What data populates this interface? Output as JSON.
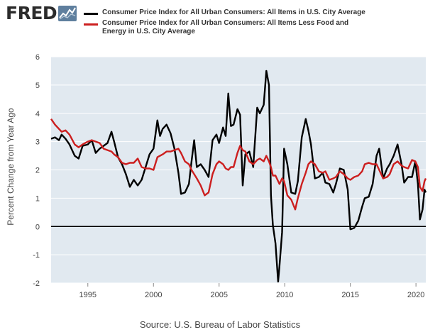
{
  "header": {
    "logo_text": "FRED",
    "logo_icon": "line-chart-icon"
  },
  "legend": [
    {
      "label": "Consumer Price Index for All Urban Consumers: All Items in U.S. City Average",
      "color": "#000000"
    },
    {
      "label": "Consumer Price Index for All Urban Consumers: All Items Less Food and Energy in U.S. City Average",
      "color": "#cc1f1f"
    }
  ],
  "source": "Source: U.S. Bureau of Labor Statistics",
  "chart_data": {
    "type": "line",
    "ylabel": "Percent Change from Year Ago",
    "xlabel": "",
    "xlim": [
      1992.2,
      2020.75
    ],
    "ylim": [
      -2,
      6
    ],
    "yticks": [
      -2,
      -1,
      0,
      1,
      2,
      3,
      4,
      5,
      6
    ],
    "xticks": [
      1995,
      2000,
      2005,
      2010,
      2015,
      2020
    ],
    "grid": "horizontal",
    "zero_line": true,
    "background": "#e1e9f0",
    "series": [
      {
        "name": "Consumer Price Index for All Urban Consumers: All Items in U.S. City Average",
        "color": "#000000",
        "points": [
          [
            1992.2,
            3.1
          ],
          [
            1992.5,
            3.15
          ],
          [
            1992.8,
            3.05
          ],
          [
            1993.0,
            3.25
          ],
          [
            1993.3,
            3.1
          ],
          [
            1993.6,
            2.9
          ],
          [
            1994.0,
            2.5
          ],
          [
            1994.3,
            2.4
          ],
          [
            1994.6,
            2.85
          ],
          [
            1995.0,
            2.9
          ],
          [
            1995.3,
            3.05
          ],
          [
            1995.6,
            2.6
          ],
          [
            1995.9,
            2.75
          ],
          [
            1996.2,
            2.85
          ],
          [
            1996.5,
            2.95
          ],
          [
            1996.8,
            3.35
          ],
          [
            1997.0,
            3.0
          ],
          [
            1997.3,
            2.45
          ],
          [
            1997.6,
            2.2
          ],
          [
            1997.9,
            1.85
          ],
          [
            1998.2,
            1.4
          ],
          [
            1998.5,
            1.65
          ],
          [
            1998.8,
            1.45
          ],
          [
            1999.1,
            1.65
          ],
          [
            1999.4,
            2.1
          ],
          [
            1999.7,
            2.55
          ],
          [
            2000.0,
            2.75
          ],
          [
            2000.3,
            3.75
          ],
          [
            2000.5,
            3.2
          ],
          [
            2000.7,
            3.45
          ],
          [
            2001.0,
            3.6
          ],
          [
            2001.3,
            3.3
          ],
          [
            2001.6,
            2.75
          ],
          [
            2001.9,
            1.9
          ],
          [
            2002.1,
            1.15
          ],
          [
            2002.4,
            1.2
          ],
          [
            2002.7,
            1.5
          ],
          [
            2002.9,
            2.3
          ],
          [
            2003.1,
            3.05
          ],
          [
            2003.3,
            2.1
          ],
          [
            2003.6,
            2.2
          ],
          [
            2003.9,
            2.0
          ],
          [
            2004.2,
            1.75
          ],
          [
            2004.5,
            3.05
          ],
          [
            2004.8,
            3.25
          ],
          [
            2005.0,
            2.95
          ],
          [
            2005.3,
            3.5
          ],
          [
            2005.5,
            3.2
          ],
          [
            2005.7,
            4.7
          ],
          [
            2005.9,
            3.55
          ],
          [
            2006.1,
            3.6
          ],
          [
            2006.4,
            4.15
          ],
          [
            2006.6,
            3.95
          ],
          [
            2006.8,
            1.45
          ],
          [
            2007.0,
            2.55
          ],
          [
            2007.3,
            2.65
          ],
          [
            2007.6,
            2.1
          ],
          [
            2007.9,
            4.2
          ],
          [
            2008.1,
            4.0
          ],
          [
            2008.4,
            4.3
          ],
          [
            2008.6,
            5.5
          ],
          [
            2008.8,
            5.0
          ],
          [
            2008.95,
            1.1
          ],
          [
            2009.1,
            0.05
          ],
          [
            2009.3,
            -0.6
          ],
          [
            2009.5,
            -1.95
          ],
          [
            2009.6,
            -1.4
          ],
          [
            2009.8,
            -0.2
          ],
          [
            2009.95,
            2.75
          ],
          [
            2010.2,
            2.2
          ],
          [
            2010.5,
            1.2
          ],
          [
            2010.8,
            1.15
          ],
          [
            2011.0,
            1.6
          ],
          [
            2011.3,
            3.15
          ],
          [
            2011.6,
            3.8
          ],
          [
            2011.8,
            3.4
          ],
          [
            2012.0,
            2.9
          ],
          [
            2012.3,
            1.7
          ],
          [
            2012.6,
            1.75
          ],
          [
            2012.9,
            1.9
          ],
          [
            2013.1,
            1.55
          ],
          [
            2013.4,
            1.5
          ],
          [
            2013.7,
            1.2
          ],
          [
            2013.9,
            1.5
          ],
          [
            2014.2,
            2.05
          ],
          [
            2014.5,
            2.0
          ],
          [
            2014.8,
            1.3
          ],
          [
            2015.0,
            -0.1
          ],
          [
            2015.3,
            -0.05
          ],
          [
            2015.6,
            0.2
          ],
          [
            2015.9,
            0.7
          ],
          [
            2016.1,
            1.0
          ],
          [
            2016.4,
            1.05
          ],
          [
            2016.7,
            1.5
          ],
          [
            2017.0,
            2.5
          ],
          [
            2017.2,
            2.75
          ],
          [
            2017.5,
            1.7
          ],
          [
            2017.8,
            2.05
          ],
          [
            2018.0,
            2.2
          ],
          [
            2018.3,
            2.5
          ],
          [
            2018.6,
            2.9
          ],
          [
            2018.9,
            2.2
          ],
          [
            2019.1,
            1.55
          ],
          [
            2019.4,
            1.75
          ],
          [
            2019.7,
            1.75
          ],
          [
            2019.95,
            2.3
          ],
          [
            2020.15,
            1.5
          ],
          [
            2020.3,
            0.25
          ],
          [
            2020.5,
            0.6
          ],
          [
            2020.65,
            1.3
          ],
          [
            2020.75,
            1.2
          ]
        ]
      },
      {
        "name": "Consumer Price Index for All Urban Consumers: All Items Less Food and Energy in U.S. City Average",
        "color": "#cc1f1f",
        "points": [
          [
            1992.2,
            3.8
          ],
          [
            1992.5,
            3.6
          ],
          [
            1992.8,
            3.45
          ],
          [
            1993.0,
            3.35
          ],
          [
            1993.3,
            3.4
          ],
          [
            1993.6,
            3.25
          ],
          [
            1994.0,
            2.9
          ],
          [
            1994.3,
            2.8
          ],
          [
            1994.6,
            2.9
          ],
          [
            1995.0,
            3.0
          ],
          [
            1995.3,
            3.05
          ],
          [
            1995.6,
            3.0
          ],
          [
            1995.9,
            2.95
          ],
          [
            1996.2,
            2.75
          ],
          [
            1996.5,
            2.7
          ],
          [
            1996.8,
            2.65
          ],
          [
            1997.0,
            2.55
          ],
          [
            1997.3,
            2.45
          ],
          [
            1997.6,
            2.25
          ],
          [
            1997.9,
            2.2
          ],
          [
            1998.2,
            2.25
          ],
          [
            1998.5,
            2.25
          ],
          [
            1998.8,
            2.4
          ],
          [
            1999.1,
            2.1
          ],
          [
            1999.4,
            2.05
          ],
          [
            1999.7,
            2.05
          ],
          [
            2000.0,
            2.0
          ],
          [
            2000.3,
            2.45
          ],
          [
            2000.5,
            2.5
          ],
          [
            2000.7,
            2.55
          ],
          [
            2001.0,
            2.65
          ],
          [
            2001.3,
            2.65
          ],
          [
            2001.6,
            2.7
          ],
          [
            2001.9,
            2.75
          ],
          [
            2002.1,
            2.6
          ],
          [
            2002.4,
            2.3
          ],
          [
            2002.7,
            2.2
          ],
          [
            2002.9,
            2.0
          ],
          [
            2003.1,
            1.85
          ],
          [
            2003.3,
            1.7
          ],
          [
            2003.6,
            1.45
          ],
          [
            2003.9,
            1.1
          ],
          [
            2004.2,
            1.2
          ],
          [
            2004.5,
            1.85
          ],
          [
            2004.8,
            2.2
          ],
          [
            2005.0,
            2.3
          ],
          [
            2005.3,
            2.2
          ],
          [
            2005.5,
            2.05
          ],
          [
            2005.7,
            2.0
          ],
          [
            2005.9,
            2.1
          ],
          [
            2006.1,
            2.1
          ],
          [
            2006.4,
            2.6
          ],
          [
            2006.6,
            2.85
          ],
          [
            2006.8,
            2.7
          ],
          [
            2007.0,
            2.65
          ],
          [
            2007.3,
            2.3
          ],
          [
            2007.6,
            2.2
          ],
          [
            2007.9,
            2.35
          ],
          [
            2008.1,
            2.4
          ],
          [
            2008.4,
            2.3
          ],
          [
            2008.6,
            2.5
          ],
          [
            2008.8,
            2.3
          ],
          [
            2008.95,
            2.1
          ],
          [
            2009.1,
            1.8
          ],
          [
            2009.3,
            1.8
          ],
          [
            2009.5,
            1.6
          ],
          [
            2009.6,
            1.5
          ],
          [
            2009.8,
            1.7
          ],
          [
            2009.95,
            1.6
          ],
          [
            2010.2,
            1.1
          ],
          [
            2010.5,
            0.95
          ],
          [
            2010.8,
            0.6
          ],
          [
            2011.0,
            1.0
          ],
          [
            2011.3,
            1.5
          ],
          [
            2011.6,
            1.9
          ],
          [
            2011.8,
            2.2
          ],
          [
            2012.0,
            2.3
          ],
          [
            2012.3,
            2.2
          ],
          [
            2012.6,
            1.95
          ],
          [
            2012.9,
            1.9
          ],
          [
            2013.1,
            1.95
          ],
          [
            2013.4,
            1.65
          ],
          [
            2013.7,
            1.7
          ],
          [
            2013.9,
            1.75
          ],
          [
            2014.2,
            1.95
          ],
          [
            2014.5,
            1.85
          ],
          [
            2014.8,
            1.7
          ],
          [
            2015.0,
            1.65
          ],
          [
            2015.3,
            1.75
          ],
          [
            2015.6,
            1.8
          ],
          [
            2015.9,
            1.95
          ],
          [
            2016.1,
            2.2
          ],
          [
            2016.4,
            2.25
          ],
          [
            2016.7,
            2.2
          ],
          [
            2017.0,
            2.2
          ],
          [
            2017.2,
            2.0
          ],
          [
            2017.5,
            1.7
          ],
          [
            2017.8,
            1.75
          ],
          [
            2018.0,
            1.85
          ],
          [
            2018.3,
            2.2
          ],
          [
            2018.6,
            2.3
          ],
          [
            2018.9,
            2.15
          ],
          [
            2019.1,
            2.1
          ],
          [
            2019.4,
            2.05
          ],
          [
            2019.7,
            2.35
          ],
          [
            2019.95,
            2.3
          ],
          [
            2020.15,
            2.1
          ],
          [
            2020.3,
            1.4
          ],
          [
            2020.5,
            1.25
          ],
          [
            2020.65,
            1.6
          ],
          [
            2020.75,
            1.7
          ]
        ]
      }
    ]
  }
}
